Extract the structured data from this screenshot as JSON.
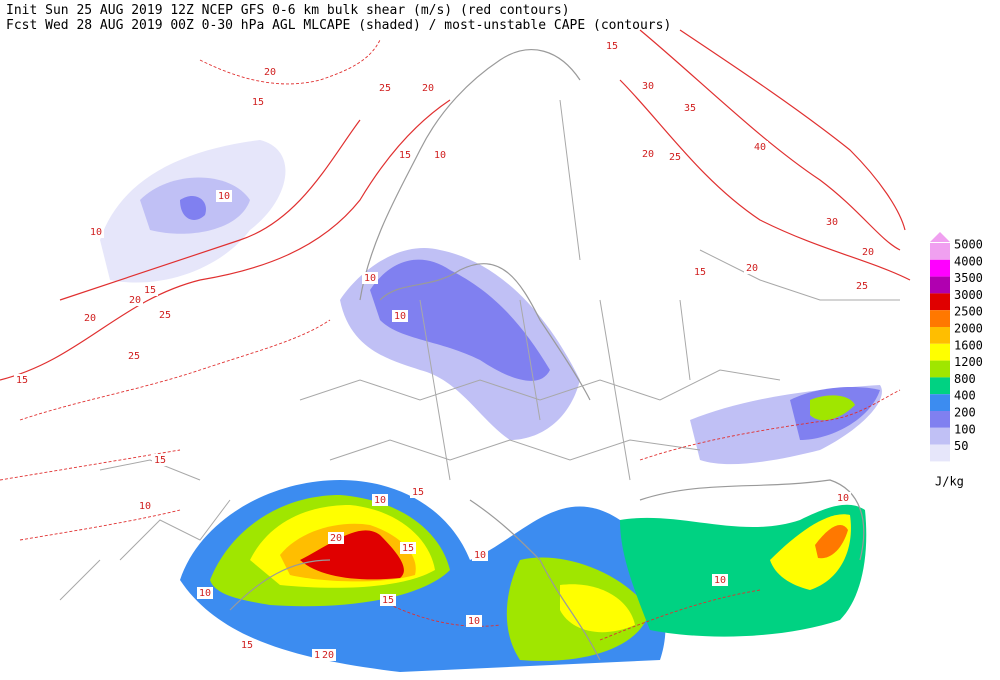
{
  "header": {
    "line1": "Init  Sun 25 AUG 2019 12Z  NCEP GFS 0-6 km bulk shear (m/s) (red contours)",
    "line2": "Fcst Wed 28 AUG 2019 00Z  0-30 hPa AGL MLCAPE (shaded) / most-unstable CAPE (contours)"
  },
  "legend": {
    "levels": [
      {
        "value": 5000,
        "color": "#f0a0f0"
      },
      {
        "value": 4000,
        "color": "#ff00ff"
      },
      {
        "value": 3500,
        "color": "#b000b0"
      },
      {
        "value": 3000,
        "color": "#e00000"
      },
      {
        "value": 2500,
        "color": "#ff7800"
      },
      {
        "value": 2000,
        "color": "#ffbe00"
      },
      {
        "value": 1600,
        "color": "#ffff00"
      },
      {
        "value": 1200,
        "color": "#a0e600"
      },
      {
        "value": 800,
        "color": "#00d282"
      },
      {
        "value": 400,
        "color": "#3c8cf0"
      },
      {
        "value": 200,
        "color": "#8080f0"
      },
      {
        "value": 100,
        "color": "#c0c0f5"
      },
      {
        "value": 50,
        "color": "#e6e6fa"
      }
    ],
    "unit": "J/kg"
  },
  "contour_labels": [
    20,
    15,
    25,
    20,
    15,
    30,
    25,
    10,
    10,
    35,
    20,
    25,
    40,
    30,
    20,
    15,
    20,
    25,
    20,
    15,
    25,
    20,
    25,
    15,
    10,
    10,
    15,
    10,
    15,
    10,
    20,
    15,
    10,
    10,
    15,
    10,
    10,
    15,
    10,
    20,
    15,
    10,
    10
  ]
}
